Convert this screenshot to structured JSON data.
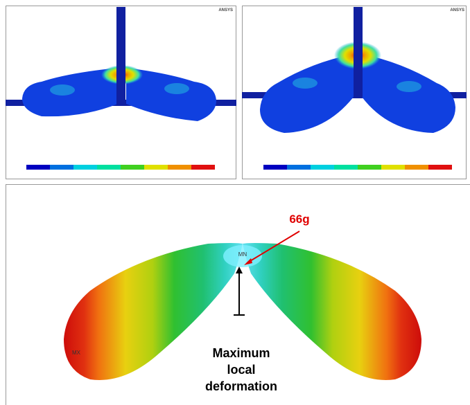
{
  "panels": [
    {
      "watermark": "ANSYS"
    },
    {
      "watermark": "ANSYS"
    }
  ],
  "main": {
    "min_label": "MN",
    "max_label": "MX",
    "annotation": "66g",
    "caption": [
      "Maximum",
      "local",
      "deformation"
    ]
  }
}
